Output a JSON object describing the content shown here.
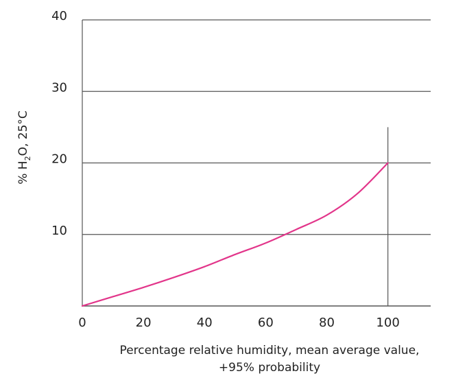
{
  "chart_data": {
    "type": "line",
    "title": "",
    "xlabel_lines": [
      "Percentage relative humidity, mean average value,",
      "+95% probability"
    ],
    "ylabel": {
      "prefix": "%  H",
      "subscript": "2",
      "suffix": "O, 25°C"
    },
    "xlim": [
      0,
      114
    ],
    "ylim": [
      0,
      40
    ],
    "x_ticks": [
      0,
      20,
      40,
      60,
      80,
      100
    ],
    "x_tick_labels": [
      "0",
      "20",
      "40",
      "60",
      "80",
      "100"
    ],
    "y_ticks": [
      10,
      20,
      30,
      40
    ],
    "y_tick_labels": [
      "10",
      "20",
      "30",
      "40"
    ],
    "grid": "horizontal",
    "marker_line": {
      "x": 100,
      "y_top": 25
    },
    "series": [
      {
        "color": "#e2358a",
        "x": [
          0,
          10,
          20,
          30,
          40,
          50,
          60,
          70,
          80,
          90,
          100
        ],
        "y": [
          0,
          1.3,
          2.6,
          4.0,
          5.5,
          7.2,
          8.8,
          10.7,
          12.7,
          15.7,
          20
        ]
      }
    ],
    "colors": {
      "grid": "#555555",
      "axis": "#555555",
      "marker_line": "#555555"
    }
  }
}
